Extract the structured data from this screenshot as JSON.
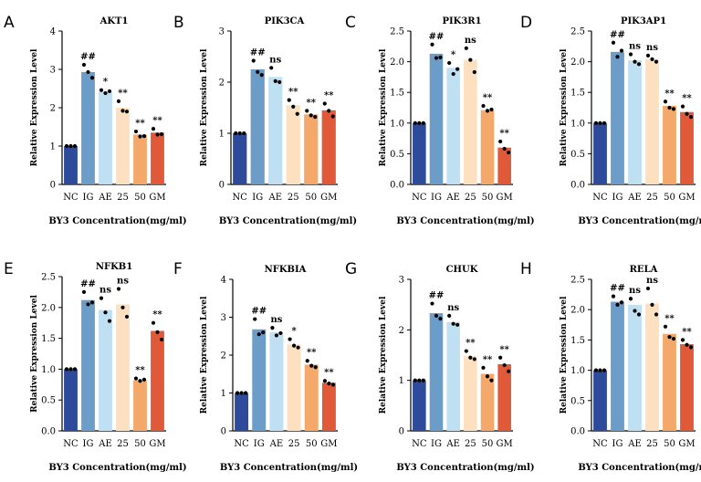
{
  "figure": {
    "colors": [
      "#2e4a9a",
      "#6b9dc8",
      "#bfe0f2",
      "#fce0c0",
      "#f4a86a",
      "#e05a3a"
    ]
  },
  "chart_data": [
    {
      "panel": "A",
      "type": "bar",
      "title": "AKT1",
      "categories": [
        "NC",
        "IG",
        "AE",
        "25",
        "50",
        "GM"
      ],
      "values": [
        1.0,
        2.93,
        2.42,
        2.0,
        1.3,
        1.35
      ],
      "points": [
        [
          1.0,
          1.0,
          1.0
        ],
        [
          3.12,
          2.93,
          2.78
        ],
        [
          2.46,
          2.38,
          2.43
        ],
        [
          2.17,
          1.92,
          1.9
        ],
        [
          1.38,
          1.25,
          1.26
        ],
        [
          1.45,
          1.3,
          1.31
        ]
      ],
      "significance": [
        "",
        "##",
        "*",
        "**",
        "**",
        "**"
      ],
      "ylim": [
        0,
        4
      ],
      "yticks": [
        "0",
        "1",
        "2",
        "3",
        "4"
      ],
      "xlabel": "BY3 Concentration(mg/ml)",
      "ylabel": "Relative Expression Level"
    },
    {
      "panel": "B",
      "type": "bar",
      "title": "PIK3CA",
      "categories": [
        "NC",
        "IG",
        "AE",
        "25",
        "50",
        "GM"
      ],
      "values": [
        1.0,
        2.25,
        2.1,
        1.55,
        1.37,
        1.45
      ],
      "points": [
        [
          1.0,
          1.0,
          1.0
        ],
        [
          2.42,
          2.2,
          2.14
        ],
        [
          2.28,
          2.02,
          2.0
        ],
        [
          1.65,
          1.52,
          1.38
        ],
        [
          1.44,
          1.35,
          1.32
        ],
        [
          1.58,
          1.44,
          1.33
        ]
      ],
      "significance": [
        "",
        "##",
        "ns",
        "**",
        "**",
        "**"
      ],
      "ylim": [
        0,
        3
      ],
      "yticks": [
        "0",
        "1",
        "2",
        "3"
      ],
      "xlabel": "BY3 Concentration(mg/ml)",
      "ylabel": "Relative Expression Level"
    },
    {
      "panel": "C",
      "type": "bar",
      "title": "PIK3R1",
      "categories": [
        "NC",
        "IG",
        "AE",
        "25",
        "50",
        "GM"
      ],
      "values": [
        1.0,
        2.13,
        1.9,
        2.03,
        1.21,
        0.6
      ],
      "points": [
        [
          1.0,
          1.0,
          1.0
        ],
        [
          2.28,
          2.06,
          2.07
        ],
        [
          1.98,
          1.8,
          1.88
        ],
        [
          2.22,
          2.03,
          1.83
        ],
        [
          1.28,
          1.2,
          1.22
        ],
        [
          0.7,
          0.58,
          0.52
        ]
      ],
      "significance": [
        "",
        "##",
        "*",
        "ns",
        "**",
        "**"
      ],
      "ylim": [
        0,
        2.5
      ],
      "yticks": [
        "0.0",
        "0.5",
        "1.0",
        "1.5",
        "2.0",
        "2.5"
      ],
      "xlabel": "BY3 Concentration(mg/ml)",
      "ylabel": "Relative Expression Level"
    },
    {
      "panel": "D",
      "type": "bar",
      "title": "PIK3AP1",
      "categories": [
        "NC",
        "IG",
        "AE",
        "25",
        "50",
        "GM"
      ],
      "values": [
        1.0,
        2.16,
        2.02,
        2.04,
        1.28,
        1.18
      ],
      "points": [
        [
          1.0,
          1.0,
          1.0
        ],
        [
          2.31,
          2.08,
          2.18
        ],
        [
          2.12,
          2.0,
          1.96
        ],
        [
          2.1,
          2.04,
          2.0
        ],
        [
          1.35,
          1.25,
          1.23
        ],
        [
          1.27,
          1.15,
          1.1
        ]
      ],
      "significance": [
        "",
        "##",
        "ns",
        "ns",
        "**",
        "**"
      ],
      "ylim": [
        0,
        2.5
      ],
      "yticks": [
        "0.0",
        "0.5",
        "1.0",
        "1.5",
        "2.0",
        "2.5"
      ],
      "xlabel": "BY3 Concentration(mg/ml)",
      "ylabel": "Relative Expression Level"
    },
    {
      "panel": "E",
      "type": "bar",
      "title": "NFKB1",
      "categories": [
        "NC",
        "IG",
        "AE",
        "25",
        "50",
        "GM"
      ],
      "values": [
        1.0,
        2.12,
        1.96,
        2.05,
        0.82,
        1.62
      ],
      "points": [
        [
          1.0,
          1.0,
          1.0
        ],
        [
          2.25,
          2.05,
          2.08
        ],
        [
          2.15,
          1.92,
          1.78
        ],
        [
          2.3,
          2.0,
          1.85
        ],
        [
          0.85,
          0.81,
          0.83
        ],
        [
          1.75,
          1.6,
          1.48
        ]
      ],
      "significance": [
        "",
        "##",
        "ns",
        "ns",
        "**",
        "**"
      ],
      "ylim": [
        0,
        2.5
      ],
      "yticks": [
        "0.0",
        "0.5",
        "1.0",
        "1.5",
        "2.0",
        "2.5"
      ],
      "xlabel": "BY3 Concentration(mg/ml)",
      "ylabel": "Relative Expression Level"
    },
    {
      "panel": "F",
      "type": "bar",
      "title": "NFKBIA",
      "categories": [
        "NC",
        "IG",
        "AE",
        "25",
        "50",
        "GM"
      ],
      "values": [
        1.0,
        2.68,
        2.6,
        2.28,
        1.75,
        1.27
      ],
      "points": [
        [
          1.0,
          1.0,
          1.0
        ],
        [
          2.95,
          2.55,
          2.6
        ],
        [
          2.72,
          2.52,
          2.58
        ],
        [
          2.42,
          2.25,
          2.2
        ],
        [
          1.85,
          1.72,
          1.68
        ],
        [
          1.32,
          1.25,
          1.22
        ]
      ],
      "significance": [
        "",
        "##",
        "ns",
        "*",
        "**",
        "**"
      ],
      "ylim": [
        0,
        4
      ],
      "yticks": [
        "0",
        "1",
        "2",
        "3",
        "4"
      ],
      "xlabel": "BY3 Concentration(mg/ml)",
      "ylabel": "Relative Expression Level"
    },
    {
      "panel": "G",
      "type": "bar",
      "title": "CHUK",
      "categories": [
        "NC",
        "IG",
        "AE",
        "25",
        "50",
        "GM"
      ],
      "values": [
        1.0,
        2.33,
        2.15,
        1.48,
        1.13,
        1.32
      ],
      "points": [
        [
          1.0,
          1.0,
          1.0
        ],
        [
          2.52,
          2.28,
          2.22
        ],
        [
          2.28,
          2.12,
          2.1
        ],
        [
          1.58,
          1.45,
          1.42
        ],
        [
          1.25,
          1.08,
          1.0
        ],
        [
          1.45,
          1.3,
          1.18
        ]
      ],
      "significance": [
        "",
        "##",
        "ns",
        "**",
        "**",
        "**"
      ],
      "ylim": [
        0,
        3
      ],
      "yticks": [
        "0",
        "1",
        "2",
        "3"
      ],
      "xlabel": "BY3 Concentration(mg/ml)",
      "ylabel": "Relative Expression Level"
    },
    {
      "panel": "H",
      "type": "bar",
      "title": "RELA",
      "categories": [
        "NC",
        "IG",
        "AE",
        "25",
        "50",
        "GM"
      ],
      "values": [
        1.0,
        2.13,
        2.08,
        2.1,
        1.6,
        1.43
      ],
      "points": [
        [
          1.0,
          1.0,
          1.0
        ],
        [
          2.22,
          2.08,
          2.12
        ],
        [
          2.18,
          1.98,
          1.92
        ],
        [
          2.35,
          2.08,
          1.92
        ],
        [
          1.72,
          1.55,
          1.52
        ],
        [
          1.5,
          1.42,
          1.38
        ]
      ],
      "significance": [
        "",
        "##",
        "ns",
        "ns",
        "**",
        "**"
      ],
      "ylim": [
        0,
        2.5
      ],
      "yticks": [
        "0.0",
        "0.5",
        "1.0",
        "1.5",
        "2.0",
        "2.5"
      ],
      "xlabel": "BY3 Concentration(mg/ml)",
      "ylabel": "Relative Expression Level"
    }
  ]
}
